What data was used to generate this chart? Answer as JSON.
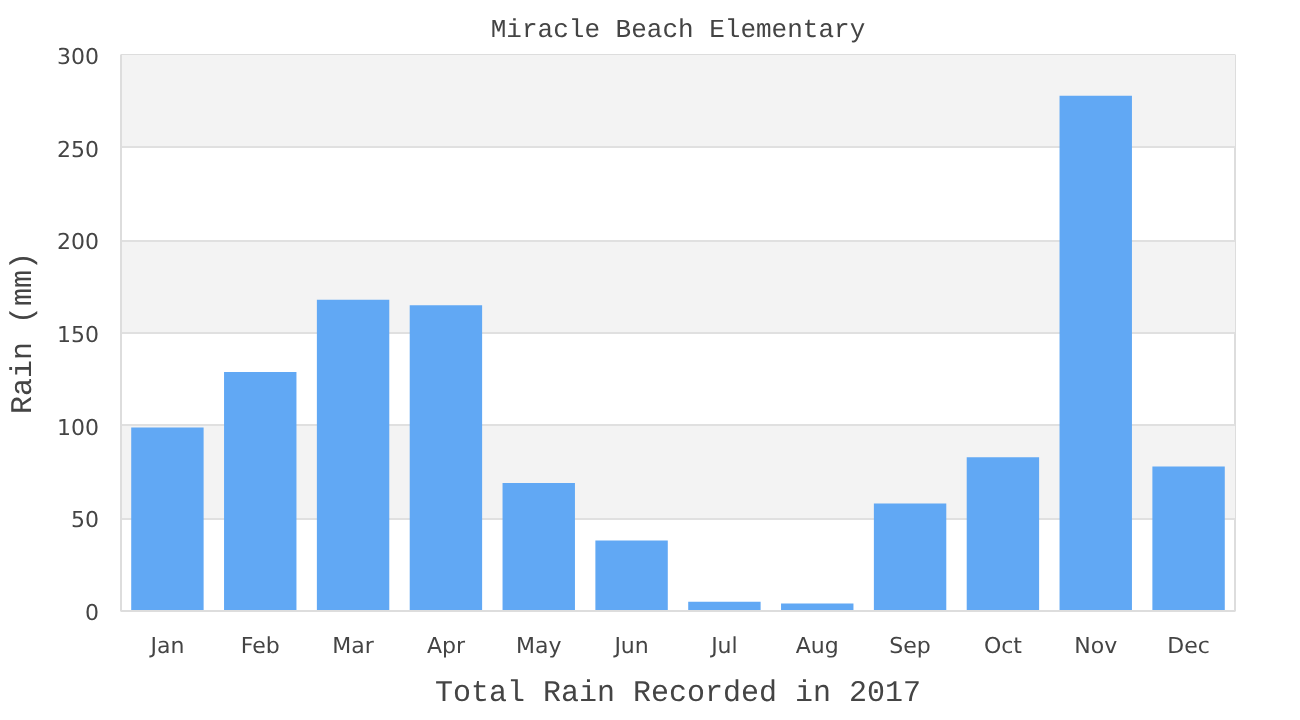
{
  "chart_data": {
    "type": "bar",
    "title": "Miracle Beach Elementary",
    "xlabel": "Total Rain Recorded in 2017",
    "ylabel": "Rain (mm)",
    "categories": [
      "Jan",
      "Feb",
      "Mar",
      "Apr",
      "May",
      "Jun",
      "Jul",
      "Aug",
      "Sep",
      "Oct",
      "Nov",
      "Dec"
    ],
    "values": [
      99,
      129,
      168,
      165,
      69,
      38,
      5,
      4,
      58,
      83,
      278,
      78
    ],
    "color": "#61a8f4",
    "ylim": [
      0,
      300
    ],
    "yticks": [
      0,
      50,
      100,
      150,
      200,
      250,
      300
    ],
    "grid": "y"
  }
}
